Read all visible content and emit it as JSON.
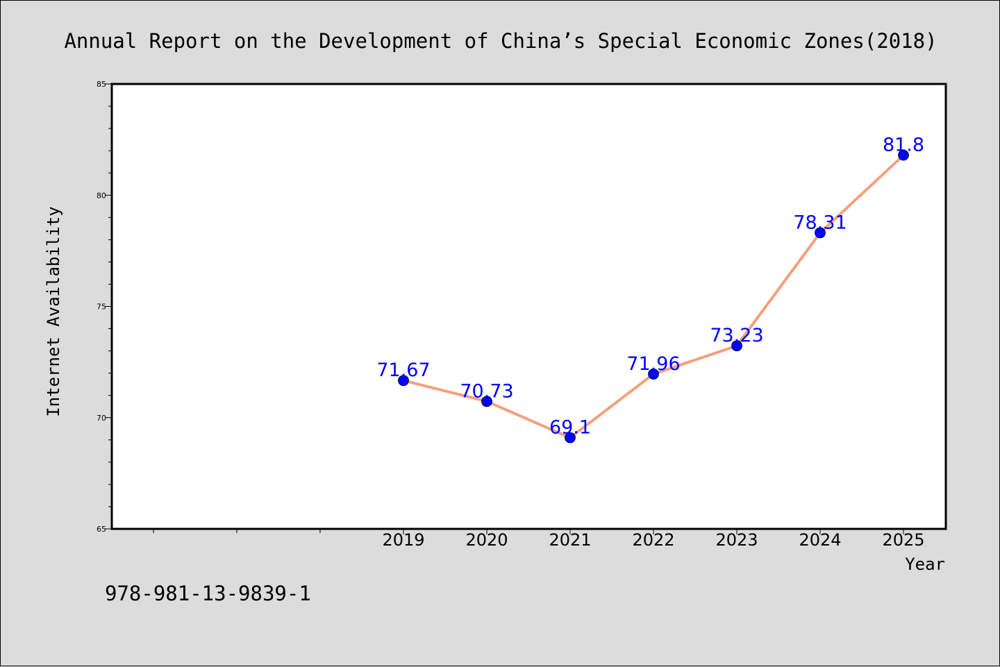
{
  "chart_data": {
    "type": "line",
    "title": "Annual Report on the Development of China’s Special Economic Zones(2018)",
    "xlabel": "Year",
    "ylabel": "Internet Availability",
    "categories": [
      "2019",
      "2020",
      "2021",
      "2022",
      "2023",
      "2024",
      "2025"
    ],
    "series": [
      {
        "values": [
          71.67,
          70.73,
          69.1,
          71.96,
          73.23,
          78.31,
          81.8
        ],
        "data_labels": [
          "71.67",
          "70.73",
          "69.1",
          "71.96",
          "73.23",
          "78.31",
          "81.8"
        ],
        "line_color": "#f4a07c",
        "marker_color": "#0000ff"
      }
    ],
    "ylim": [
      65,
      85
    ],
    "yticks": [
      "65",
      "70",
      "75",
      "80",
      "85"
    ],
    "grid": false,
    "legend": "none",
    "plot_background": "#ffffff",
    "figure_background": "#dcdcdc"
  },
  "footnote": "978-981-13-9839-1"
}
